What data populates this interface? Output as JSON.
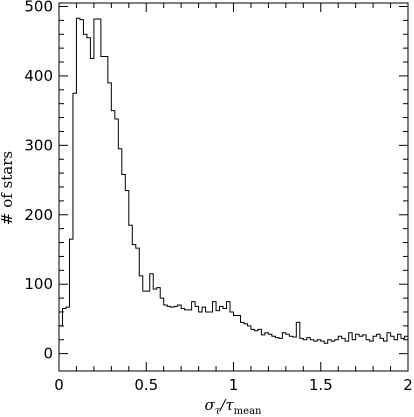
{
  "chart_data": {
    "type": "histogram",
    "title": "",
    "xlabel": {
      "sym": "σ",
      "sub1": "τ",
      "sep": "/",
      "sym2": "τ",
      "sub2": "mean"
    },
    "ylabel": "# of stars",
    "xlim": [
      0,
      2
    ],
    "ylim": [
      -25,
      505
    ],
    "xticks": [
      0,
      0.5,
      1,
      1.5,
      2
    ],
    "xtick_labels": [
      "0",
      "0.5",
      "1",
      "1.5",
      "2"
    ],
    "yticks": [
      0,
      100,
      200,
      300,
      400,
      500
    ],
    "ytick_labels": [
      "0",
      "100",
      "200",
      "300",
      "400",
      "500"
    ],
    "bin_width": 0.02,
    "bin_start": 0,
    "counts": [
      40,
      65,
      67,
      165,
      375,
      483,
      481,
      460,
      455,
      425,
      482,
      482,
      428,
      428,
      390,
      350,
      338,
      295,
      258,
      235,
      185,
      157,
      152,
      112,
      90,
      90,
      115,
      93,
      95,
      80,
      70,
      68,
      67,
      68,
      70,
      65,
      63,
      63,
      75,
      68,
      60,
      67,
      60,
      60,
      75,
      62,
      68,
      65,
      75,
      60,
      55,
      55,
      45,
      43,
      40,
      35,
      33,
      35,
      27,
      30,
      28,
      25,
      23,
      22,
      30,
      28,
      25,
      24,
      45,
      22,
      20,
      23,
      20,
      18,
      20,
      18,
      15,
      20,
      18,
      20,
      25,
      22,
      18,
      30,
      20,
      28,
      25,
      27,
      20,
      18,
      25,
      28,
      22,
      18,
      30,
      25,
      20,
      28,
      22,
      25
    ],
    "grid": false,
    "legend": "none"
  }
}
